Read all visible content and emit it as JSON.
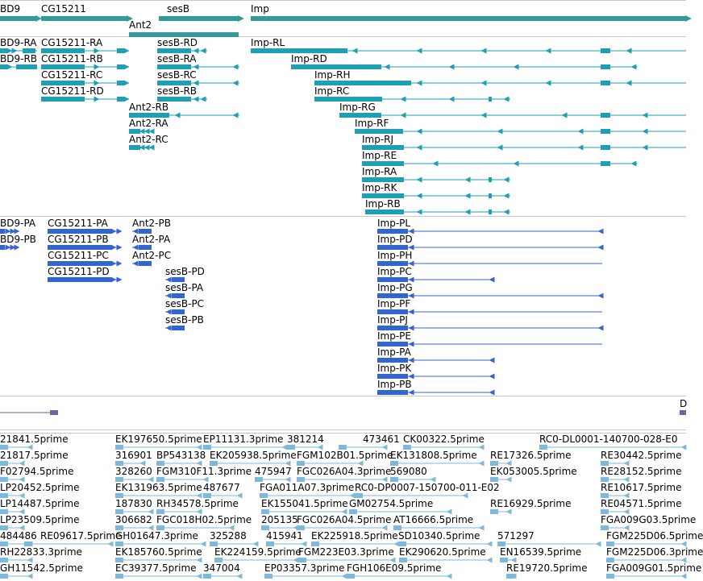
{
  "colors": {
    "gene": "#339999",
    "transcript": "#1f9fb4",
    "protein": "#3366cc",
    "est": "#7eb9d9",
    "misc": "#7b5ca6"
  },
  "genes": [
    {
      "label": "BD9"
    },
    {
      "label": "CG15211"
    },
    {
      "label": "sesB"
    },
    {
      "label": "Imp"
    },
    {
      "label": "Ant2"
    }
  ],
  "transcripts": [
    {
      "label": "BD9-RA"
    },
    {
      "label": "BD9-RB"
    },
    {
      "label": "CG15211-RA"
    },
    {
      "label": "CG15211-RB"
    },
    {
      "label": "CG15211-RC"
    },
    {
      "label": "CG15211-RD"
    },
    {
      "label": "sesB-RD"
    },
    {
      "label": "sesB-RA"
    },
    {
      "label": "sesB-RC"
    },
    {
      "label": "sesB-RB"
    },
    {
      "label": "Ant2-RB"
    },
    {
      "label": "Ant2-RA"
    },
    {
      "label": "Ant2-RC"
    },
    {
      "label": "Imp-RL"
    },
    {
      "label": "Imp-RD"
    },
    {
      "label": "Imp-RH"
    },
    {
      "label": "Imp-RC"
    },
    {
      "label": "Imp-RG"
    },
    {
      "label": "Imp-RF"
    },
    {
      "label": "Imp-RJ"
    },
    {
      "label": "Imp-RE"
    },
    {
      "label": "Imp-RA"
    },
    {
      "label": "Imp-RK"
    },
    {
      "label": "Imp-RB"
    }
  ],
  "proteins": [
    {
      "label": "BD9-PA"
    },
    {
      "label": "BD9-PB"
    },
    {
      "label": "CG15211-PA"
    },
    {
      "label": "CG15211-PB"
    },
    {
      "label": "CG15211-PC"
    },
    {
      "label": "CG15211-PD"
    },
    {
      "label": "Ant2-PB"
    },
    {
      "label": "Ant2-PA"
    },
    {
      "label": "Ant2-PC"
    },
    {
      "label": "sesB-PD"
    },
    {
      "label": "sesB-PA"
    },
    {
      "label": "sesB-PC"
    },
    {
      "label": "sesB-PB"
    },
    {
      "label": "Imp-PL"
    },
    {
      "label": "Imp-PD"
    },
    {
      "label": "Imp-PH"
    },
    {
      "label": "Imp-PC"
    },
    {
      "label": "Imp-PG"
    },
    {
      "label": "Imp-PF"
    },
    {
      "label": "Imp-PJ"
    },
    {
      "label": "Imp-PE"
    },
    {
      "label": "Imp-PA"
    },
    {
      "label": "Imp-PK"
    },
    {
      "label": "Imp-PB"
    }
  ],
  "misc_track": {
    "label": "D"
  },
  "ests": [
    {
      "label": "21841.5prime"
    },
    {
      "label": "EK197650.5prime"
    },
    {
      "label": "EP11131.3prime"
    },
    {
      "label": "381214"
    },
    {
      "label": "473461"
    },
    {
      "label": "CK00322.5prime"
    },
    {
      "label": "RC0-DL0001-140700-028-E0"
    },
    {
      "label": "21817.5prime"
    },
    {
      "label": "316901"
    },
    {
      "label": "BP543138"
    },
    {
      "label": "EK205938.5prime"
    },
    {
      "label": "FGM102B01.5prime"
    },
    {
      "label": "EK131808.5prime"
    },
    {
      "label": "RE17326.5prime"
    },
    {
      "label": "RE30442.5prime"
    },
    {
      "label": "F02794.5prime"
    },
    {
      "label": "328260"
    },
    {
      "label": "FGM310F11.3prime"
    },
    {
      "label": "475947"
    },
    {
      "label": "FGC026A04.3prime"
    },
    {
      "label": "569080"
    },
    {
      "label": "EK053005.5prime"
    },
    {
      "label": "RE28152.5prime"
    },
    {
      "label": "LP20452.5prime"
    },
    {
      "label": "EK131963.5prime"
    },
    {
      "label": "487677"
    },
    {
      "label": "FGA011A07.3prime"
    },
    {
      "label": "RC0-DP0007-150700-011-E02"
    },
    {
      "label": "RE10617.5prime"
    },
    {
      "label": "LP14487.5prime"
    },
    {
      "label": "187830"
    },
    {
      "label": "RH34578.5prime"
    },
    {
      "label": "EK155041.5prime"
    },
    {
      "label": "GM02754.5prime"
    },
    {
      "label": "RE16929.5prime"
    },
    {
      "label": "RE04571.5prime"
    },
    {
      "label": "LP23509.5prime"
    },
    {
      "label": "306682"
    },
    {
      "label": "FGC018H02.5prime"
    },
    {
      "label": "205135"
    },
    {
      "label": "FGC026A04.5prime"
    },
    {
      "label": "AT16666.5prime"
    },
    {
      "label": "FGA009G03.5prime"
    },
    {
      "label": "484486"
    },
    {
      "label": "RE09617.5prime"
    },
    {
      "label": "GH01647.3prime"
    },
    {
      "label": "325288"
    },
    {
      "label": "415941"
    },
    {
      "label": "EK225918.5prime"
    },
    {
      "label": "SD10340.5prime"
    },
    {
      "label": "571297"
    },
    {
      "label": "FGM225D06.5prime"
    },
    {
      "label": "RH22833.3prime"
    },
    {
      "label": "EK185760.5prime"
    },
    {
      "label": "EK224159.5prime"
    },
    {
      "label": "FGM223E03.3prime"
    },
    {
      "label": "EK290620.5prime"
    },
    {
      "label": "EN16539.5prime"
    },
    {
      "label": "FGM225D06.3prime"
    },
    {
      "label": "GH11542.5prime"
    },
    {
      "label": "EC39377.5prime"
    },
    {
      "label": "347004"
    },
    {
      "label": "EP03357.3prime"
    },
    {
      "label": "FGH106E09.5prime"
    },
    {
      "label": "RE19720.5prime"
    },
    {
      "label": "FGA009G01.5prime"
    }
  ]
}
